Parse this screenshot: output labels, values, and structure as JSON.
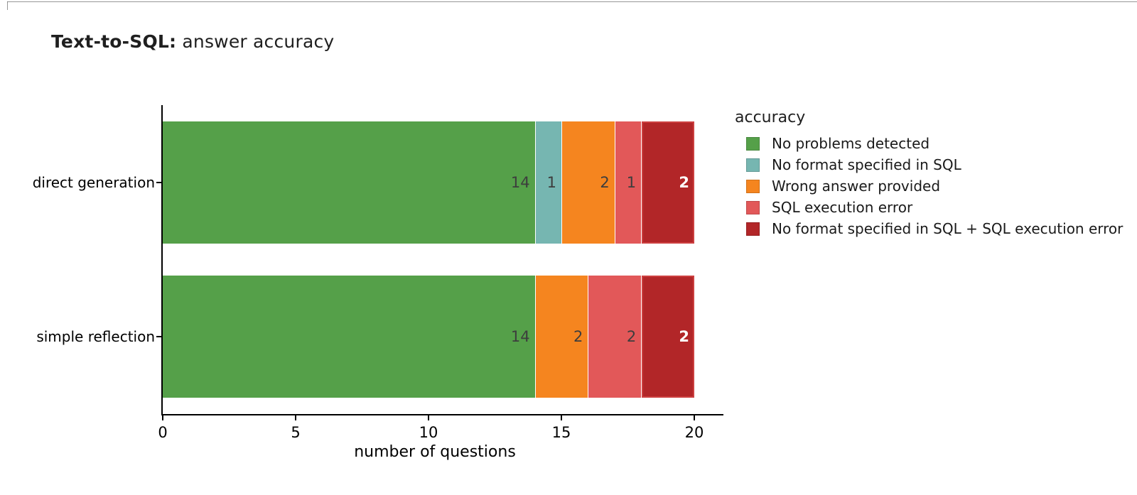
{
  "title": {
    "bold": "Text-to-SQL:",
    "rest": " answer accuracy"
  },
  "chart_data": {
    "type": "bar",
    "orientation": "horizontal",
    "stacked": true,
    "title": "Text-to-SQL: answer accuracy",
    "categories": [
      "direct generation",
      "simple reflection"
    ],
    "series": [
      {
        "name": "No problems detected",
        "color": "#55a049",
        "values": [
          14,
          14
        ]
      },
      {
        "name": "No format specified in SQL",
        "color": "#76b6b1",
        "values": [
          1,
          0
        ]
      },
      {
        "name": "Wrong answer provided",
        "color": "#f5851f",
        "values": [
          2,
          2
        ]
      },
      {
        "name": "SQL execution error",
        "color": "#e25859",
        "values": [
          1,
          2
        ]
      },
      {
        "name": "No format specified in SQL + SQL execution error",
        "color": "#b22628",
        "values": [
          2,
          2
        ]
      }
    ],
    "xlabel": "number of questions",
    "ylabel": "",
    "xlim": [
      0,
      20
    ],
    "x_ticks": [
      0,
      5,
      10,
      15,
      20
    ],
    "grid": false,
    "legend_title": "accuracy",
    "legend_position": "right",
    "value_labels_shown": true,
    "value_label_color_default": "#3d3d3d",
    "value_label_color_on_dark": "#ffffff",
    "axis_color": "#000000"
  }
}
